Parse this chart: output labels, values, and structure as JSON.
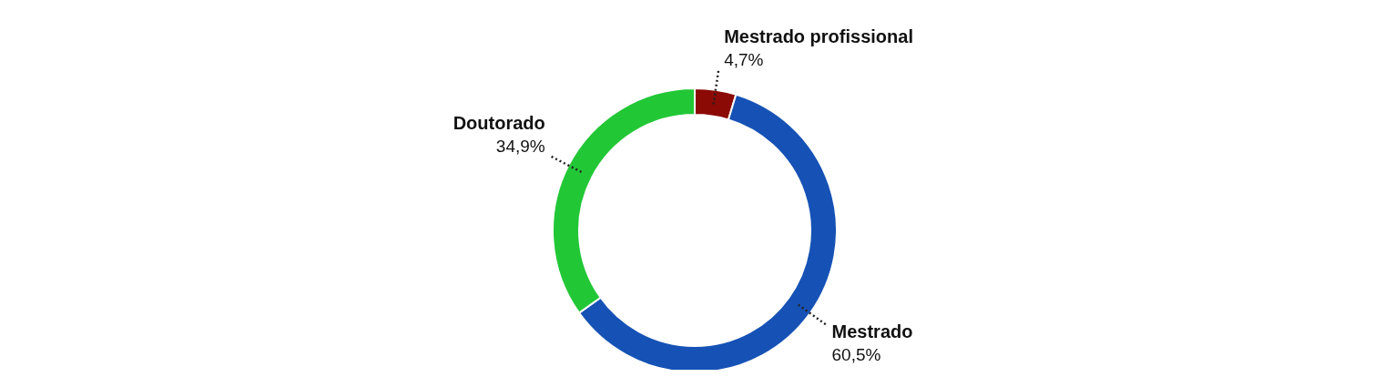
{
  "chart_data": {
    "type": "donut",
    "categories": [
      "Mestrado profissional",
      "Mestrado",
      "Doutorado"
    ],
    "values": [
      4.7,
      60.5,
      34.9
    ],
    "colors": [
      "#8b0a05",
      "#1652b5",
      "#22c736"
    ],
    "value_labels": [
      "4,7%",
      "60,5%",
      "34,9%"
    ],
    "legend": false
  }
}
